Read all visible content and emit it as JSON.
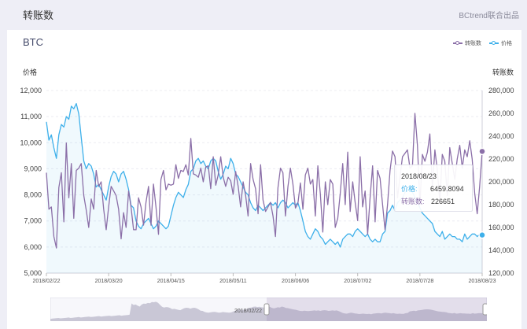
{
  "header": {
    "title": "转账数",
    "brand": "BCtrend联合出品"
  },
  "card": {
    "title": "BTC"
  },
  "legend": {
    "items": [
      {
        "label": "转账数",
        "color": "#8b6fa8"
      },
      {
        "label": "价格",
        "color": "#3eb0ea"
      }
    ]
  },
  "axes": {
    "left_name": "价格",
    "right_name": "转账数"
  },
  "tooltip": {
    "date": "2018/08/23",
    "price_label": "价格:",
    "price_value": "6459.8094",
    "tx_label": "转账数:",
    "tx_value": "226651"
  },
  "brush": {
    "start_label": "2018/02/22",
    "end_label": "2018/08/23"
  },
  "chart_data": {
    "type": "line",
    "x_start": "2018/02/22",
    "x_end": "2018/08/23",
    "x_tick_labels": [
      "2018/02/22",
      "2018/03/20",
      "2018/04/15",
      "2018/05/11",
      "2018/06/06",
      "2018/07/02",
      "2018/07/28",
      "2018/08/23"
    ],
    "y_left": {
      "label": "价格",
      "min": 5000,
      "max": 12000,
      "ticks": [
        "5,000",
        "6,000",
        "7,000",
        "8,000",
        "9,000",
        "10,000",
        "11,000",
        "12,000"
      ]
    },
    "y_right": {
      "label": "转账数",
      "min": 120000,
      "max": 280000,
      "ticks": [
        "120,000",
        "140,000",
        "160,000",
        "180,000",
        "200,000",
        "220,000",
        "240,000",
        "260,000",
        "280,000"
      ]
    },
    "series": [
      {
        "name": "价格",
        "axis": "left",
        "color": "#3eb0ea",
        "values": [
          10800,
          10100,
          10300,
          9800,
          9400,
          10300,
          10700,
          10600,
          11000,
          10900,
          11400,
          11300,
          11500,
          11100,
          10200,
          9300,
          9000,
          9200,
          9100,
          8800,
          8300,
          8400,
          8200,
          8000,
          7800,
          8300,
          8700,
          8900,
          8800,
          8500,
          8800,
          8900,
          8600,
          8200,
          7600,
          7500,
          7000,
          6800,
          6700,
          6900,
          7000,
          7100,
          6900,
          6700,
          6800,
          7000,
          6900,
          6800,
          6700,
          6800,
          7200,
          7600,
          7900,
          8100,
          8000,
          7900,
          8200,
          8400,
          8900,
          9000,
          9300,
          9400,
          9200,
          9300,
          9100,
          9000,
          9300,
          9400,
          9300,
          8900,
          8600,
          8800,
          9100,
          9000,
          9400,
          9200,
          8800,
          8700,
          8500,
          8300,
          8100,
          8000,
          7700,
          7500,
          7400,
          7600,
          7500,
          7400,
          7500,
          7600,
          7700,
          7600,
          7700,
          7500,
          7700,
          7800,
          7700,
          7500,
          7600,
          7700,
          7600,
          7700,
          7400,
          7000,
          6600,
          6400,
          6300,
          6500,
          6700,
          6600,
          6400,
          6300,
          6100,
          6200,
          6300,
          6200,
          6100,
          6200,
          6000,
          6300,
          6400,
          6500,
          6500,
          6400,
          6600,
          6700,
          6600,
          6500,
          6400,
          6500,
          6300,
          6200,
          6300,
          6200,
          6200,
          6500,
          6600,
          7300,
          7400,
          7600,
          7400,
          7700,
          7800,
          7900,
          8100,
          8200,
          8200,
          8100,
          7900,
          7700,
          7500,
          7300,
          7200,
          7100,
          7000,
          6900,
          6600,
          6500,
          6400,
          6600,
          6300,
          6400,
          6500,
          6400,
          6400,
          6300,
          6300,
          6200,
          6500,
          6300,
          6400,
          6500,
          6500,
          6400,
          6500,
          6459.8094
        ]
      },
      {
        "name": "转账数",
        "axis": "right",
        "color": "#8b6fa8",
        "values": [
          208000,
          176000,
          178000,
          152000,
          142000,
          195000,
          208000,
          165000,
          234000,
          186000,
          216000,
          168000,
          210000,
          212000,
          216000,
          188000,
          175000,
          160000,
          185000,
          176000,
          210000,
          196000,
          200000,
          176000,
          158000,
          178000,
          196000,
          192000,
          188000,
          176000,
          150000,
          173000,
          160000,
          192000,
          178000,
          158000,
          158000,
          186000,
          178000,
          162000,
          182000,
          196000,
          162000,
          198000,
          178000,
          154000,
          202000,
          210000,
          193000,
          198000,
          197000,
          198000,
          215000,
          203000,
          210000,
          209000,
          215000,
          206000,
          238000,
          207000,
          206000,
          204000,
          212000,
          200000,
          213000,
          214000,
          194000,
          222000,
          197000,
          206000,
          222000,
          204000,
          196000,
          204000,
          201000,
          189000,
          209000,
          196000,
          178000,
          200000,
          188000,
          170000,
          216000,
          202000,
          194000,
          172000,
          215000,
          184000,
          174000,
          178000,
          182000,
          170000,
          152000,
          195000,
          212000,
          208000,
          170000,
          196000,
          212000,
          198000,
          177000,
          181000,
          199000,
          176000,
          206000,
          212000,
          198000,
          202000,
          170000,
          214000,
          190000,
          156000,
          200000,
          180000,
          202000,
          198000,
          160000,
          168000,
          190000,
          216000,
          180000,
          226000,
          174000,
          200000,
          182000,
          166000,
          222000,
          178000,
          192000,
          154000,
          186000,
          214000,
          165000,
          210000,
          203000,
          180000,
          158000,
          180000,
          210000,
          227000,
          222000,
          186000,
          204000,
          222000,
          225000,
          228000,
          212000,
          214000,
          260000,
          232000,
          180000,
          224000,
          218000,
          226000,
          242000,
          196000,
          228000,
          210000,
          182000,
          224000,
          218000,
          188000,
          230000,
          216000,
          202000,
          220000,
          232000,
          212000,
          228000,
          222000,
          236000,
          220000,
          190000,
          172000,
          196000,
          226651
        ]
      }
    ]
  }
}
